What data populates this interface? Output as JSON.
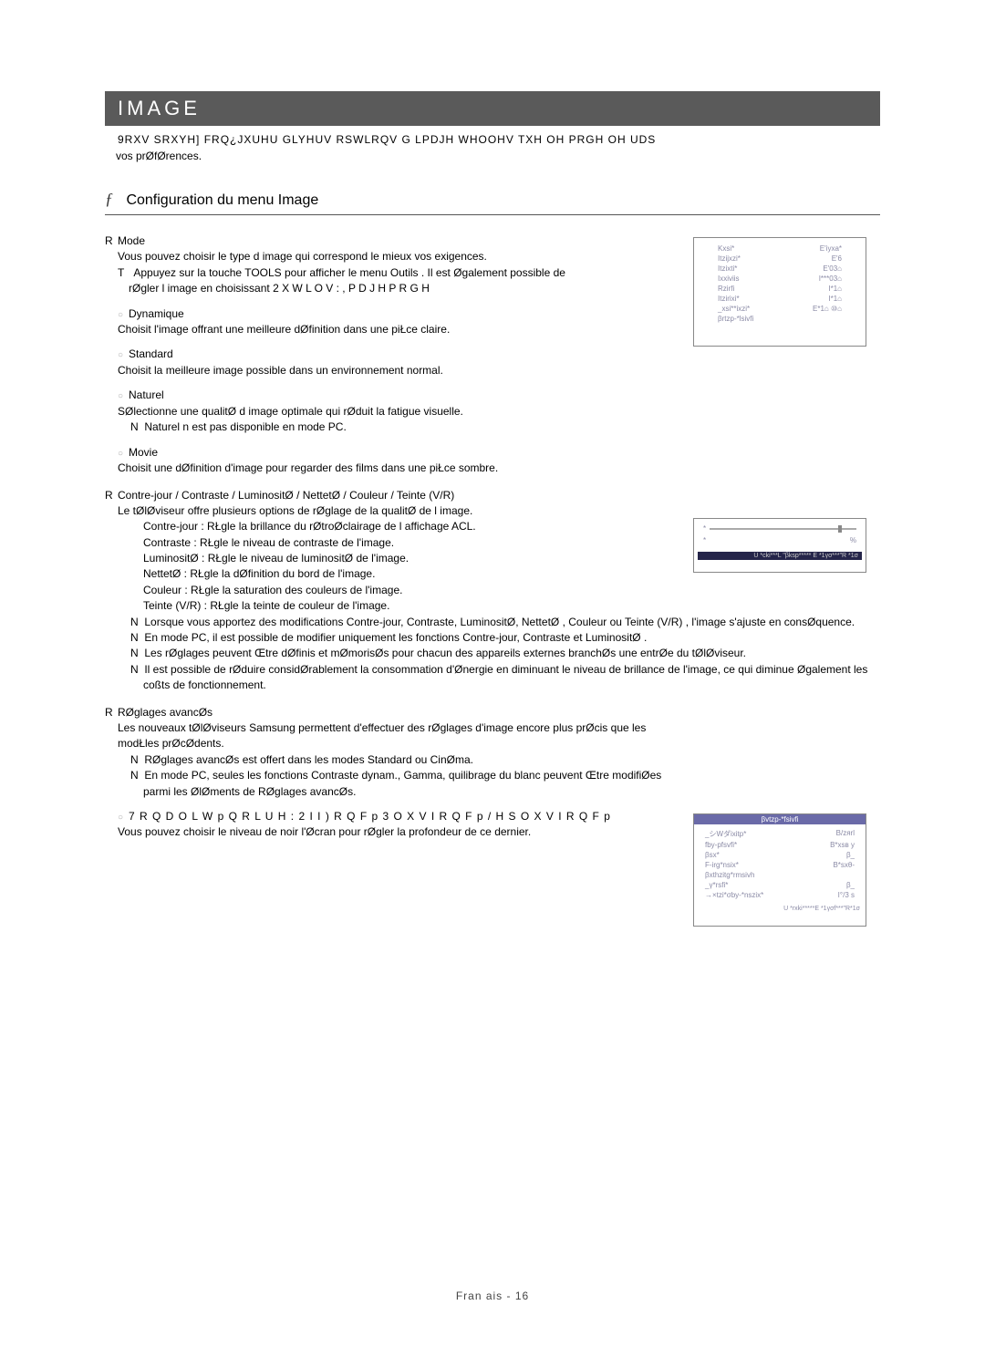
{
  "header": {
    "title": "IMAGE"
  },
  "intro": {
    "line1": "9RXV  SRXYH]  FRQ¿JXUHU  GLYHUV  RSWLRQV  G  LPDJH  WHOOHV  TXH  OH  PRGH   OH  UDS",
    "line2": "vos prØfØrences."
  },
  "config_menu": {
    "dagger": "ƒ",
    "title": "Configuration du menu Image"
  },
  "mode": {
    "marker": "R",
    "label": "Mode",
    "desc": "Vous pouvez choisir le type d  image qui correspond le mieux   vos exigences.",
    "tmark": "T",
    "tline": "Appuyez sur la touche TOOLS  pour afficher le menu Outils . Il est Øgalement possible de rØgler l  image en choisissant 2 X W L O V   :    , P D J H   P R G H",
    "items": [
      {
        "title": "Dynamique",
        "body": "Choisit l'image offrant une meilleure dØfinition dans une piŁce claire."
      },
      {
        "title": "Standard",
        "body": "Choisit la meilleure image possible dans un environnement normal."
      },
      {
        "title": "Naturel",
        "body": "SØlectionne une qualitØ d  image optimale qui rØduit la fatigue visuelle.",
        "note": "Naturel  n  est pas disponible en mode PC."
      },
      {
        "title": "Movie",
        "body": "Choisit une dØfinition d'image pour regarder des films dans une piŁce sombre."
      }
    ]
  },
  "contrejour": {
    "marker": "R",
    "label": "Contre-jour / Contraste / LuminositØ / NettetØ / Couleur / Teinte (V/R)",
    "desc": "Le tØlØviseur offre plusieurs options de rØglage de la qualitØ de l  image.",
    "details": [
      "Contre-jour   : RŁgle la brillance du rØtroØclairage de l  affichage ACL.",
      "Contraste   : RŁgle le niveau de contraste de l'image.",
      "LuminositØ   : RŁgle le niveau de luminositØ de l'image.",
      "NettetØ  : RŁgle la dØfinition du bord de l'image.",
      "Couleur  : RŁgle la saturation des couleurs de l'image.",
      "Teinte (V/R)  : RŁgle la teinte de couleur de l'image."
    ],
    "notes": [
      "Lorsque vous apportez des modifications    Contre-jour, Contraste, LuminositØ, NettetØ   , Couleur  ou Teinte (V/R) , l'image s'ajuste en consØquence.",
      "En mode PC, il est possible de modifier uniquement les fonctions Contre-jour, Contraste  et LuminositØ .",
      "Les rØglages peuvent Œtre dØfinis et mØmorisØs pour chacun des appareils externes branchØs   une entrØe du tØlØviseur.",
      "Il est possible de rØduire considØrablement la consommation d'Ønergie en diminuant le niveau de brillance de l'image, ce qui diminue Øgalement les coßts de fonctionnement."
    ]
  },
  "reglages": {
    "marker": "R",
    "label": "RØglages avancØs",
    "desc": "Les nouveaux tØlØviseurs Samsung permettent d'effectuer des rØglages d'image encore plus prØcis que les modŁles prØcØdents.",
    "notes": [
      "RØglages avancØs est offert dans les modes Standard  ou CinØma.",
      "En mode PC, seules les fonctions Contraste dynam., Gamma,     quilibrage du blanc peuvent Œtre modifiØes parmi les ØlØments de RØglages avancØs."
    ]
  },
  "tonalite": {
    "circ": "○",
    "line": "7 R Q D O L W p   Q R L U H   :   2 I I    ) R Q F p    3 O X V   I R Q F p    / H   S O X V   I R Q F p",
    "body": "Vous pouvez choisir le niveau de noir   l'Øcran pour rØgler la profondeur de ce dernier."
  },
  "figure1": {
    "rows": [
      [
        "Kxsi*",
        "E'iyxa*"
      ],
      [
        "Itzijxzi*",
        "E'6"
      ],
      [
        "Itzixti*",
        "E'03⌂"
      ],
      [
        "Ixxiviis",
        "I***03⌂"
      ],
      [
        "Rzirfi",
        "I*1⌂"
      ],
      [
        "Itzirixi*",
        "I*1⌂"
      ],
      [
        "_xsi**ixzi*",
        "E*1⌂ ⑩⌂"
      ],
      [
        "βrtzp-*lsivfi",
        ""
      ]
    ]
  },
  "figure2": {
    "left": "*",
    "right": "%",
    "footer": "U *cki***L   \"βksp*****   E   *1γσ***\"R *1σ"
  },
  "figure3": {
    "title": "βvtzp-*fsivfi",
    "rows": [
      [
        "_シWダixitp*",
        "В/zяrl"
      ],
      [
        "fby-pfsvfi*",
        "B*xsв y"
      ],
      [
        "βsx*",
        "β_"
      ],
      [
        "F-irg*nsix*",
        "B*sxθ-"
      ],
      [
        "βxthzitg*rmsivh",
        ""
      ],
      [
        "_γ*rsfi*",
        "β_"
      ],
      [
        "→×tzi*σby-*nszix*",
        "I°/3 s"
      ]
    ],
    "footer": "U *rxki*****E   *1γσf***\"R*1σ"
  },
  "footer": {
    "text": "Fran  ais - 16"
  }
}
